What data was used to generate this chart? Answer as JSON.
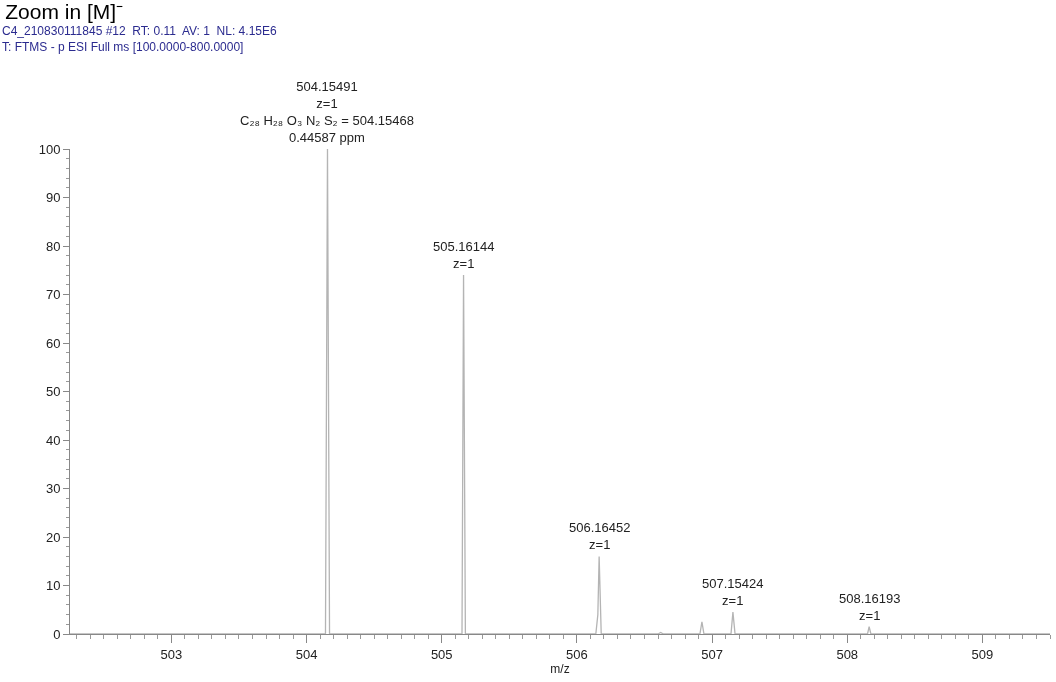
{
  "chart_data": {
    "type": "line",
    "title": "Zoom in [M]⁻",
    "subtitle": "C4_210830111845 #12  RT: 0.11  AV: 1  NL: 4.15E6\nT: FTMS - p ESI Full ms [100.0000-800.0000]",
    "xlabel": "m/z",
    "series": [
      {
        "color": "#b4b4b4",
        "x": [
          502.25,
          504.14,
          504.15491,
          504.17,
          505.15,
          505.16144,
          505.175,
          506.14,
          506.155,
          506.16452,
          506.18,
          506.6,
          506.62,
          506.64,
          506.91,
          506.925,
          506.94,
          507.14,
          507.15424,
          507.17,
          508.15,
          508.16193,
          508.175,
          509.5
        ],
        "values": [
          0,
          0,
          100,
          0,
          0,
          74,
          0,
          0,
          4,
          16,
          0,
          0,
          0.3,
          0,
          0,
          2.5,
          0,
          0,
          4.5,
          0,
          0,
          1.5,
          0,
          0
        ]
      }
    ],
    "annotations": [
      {
        "text": "504.15491\nz=1\nC₂₈ H₂₈ O₃ N₂ S₂ = 504.15468\n0.44587 ppm",
        "x": 504.15491,
        "y": 100
      },
      {
        "text": "505.16144\nz=1",
        "x": 505.16144,
        "y": 74
      },
      {
        "text": "506.16452\nz=1",
        "x": 506.16452,
        "y": 16
      },
      {
        "text": "507.15424\nz=1",
        "x": 507.15424,
        "y": 4.5
      },
      {
        "text": "508.16193\nz=1",
        "x": 508.16193,
        "y": 1.5
      }
    ],
    "xlim": [
      502.25,
      509.5
    ],
    "xticks": [
      503,
      504,
      505,
      506,
      507,
      508,
      509
    ],
    "ylim": [
      0,
      100
    ],
    "yticks": [
      0,
      10,
      20,
      30,
      40,
      50,
      60,
      70,
      80,
      90,
      100
    ],
    "marker": "none",
    "line_style": "solid"
  }
}
